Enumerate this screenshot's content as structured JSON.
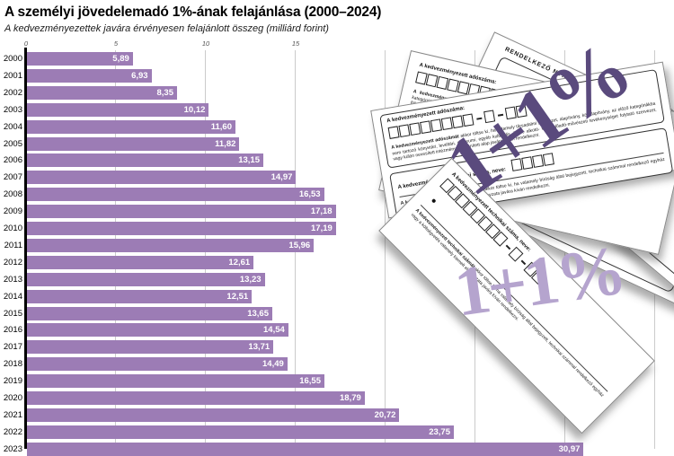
{
  "title": "A személyi jövedelemadó 1%-ának felajánlása (2000–2024)",
  "subtitle": "A kedvezményezettek javára érvényesen felajánlott összeg (milliárd forint)",
  "watermark": "1+1%",
  "colors": {
    "bar": "#9c7cb5",
    "watermark_dark": "#5a4a7d",
    "watermark_light": "#b5a4ce",
    "gridline": "#cbcbcb",
    "axis": "#000000"
  },
  "chart_data": {
    "type": "bar",
    "orientation": "horizontal",
    "title": "A személyi jövedelemadó 1%-ának felajánlása (2000–2024)",
    "subtitle": "A kedvezményezettek javára érvényesen felajánlott összeg (milliárd forint)",
    "xlabel": "",
    "ylabel": "",
    "unit": "milliárd forint",
    "categories": [
      2000,
      2001,
      2002,
      2003,
      2004,
      2005,
      2006,
      2007,
      2008,
      2009,
      2010,
      2011,
      2012,
      2013,
      2014,
      2015,
      2016,
      2017,
      2018,
      2019,
      2020,
      2021,
      2022,
      2023
    ],
    "values": [
      5.89,
      6.93,
      8.35,
      10.12,
      11.6,
      11.82,
      13.15,
      14.97,
      16.53,
      17.18,
      17.19,
      15.96,
      12.61,
      13.23,
      12.51,
      13.65,
      14.54,
      13.71,
      14.49,
      16.55,
      18.79,
      20.72,
      23.75,
      30.97
    ],
    "value_labels": [
      "5,89",
      "6,93",
      "8,35",
      "10,12",
      "11,60",
      "11,82",
      "13,15",
      "14,97",
      "16,53",
      "17,18",
      "17,19",
      "15,96",
      "12,61",
      "13,23",
      "12,51",
      "13,65",
      "14,54",
      "13,71",
      "14,49",
      "16,55",
      "18,79",
      "20,72",
      "23,75",
      "30,97"
    ],
    "x_ticks": [
      0,
      5,
      10,
      15
    ],
    "gridline_values": [
      5,
      10,
      15,
      20,
      25,
      30,
      35
    ],
    "xlim": [
      0,
      35
    ],
    "grid": true,
    "legend": false
  },
  "forms": {
    "back_title": "RENDELKEZŐ NYILATKOZAT A BEFIZETETT ADÓ EGY SZÁZALÉKÁRÓL",
    "field1_label": "A kedvezményezett adószáma:",
    "field1_bold": "A kedvezményezett adószámát",
    "field1_text": "akkor töltse ki, ha valamely társadalmi szervezet, alapítvány, közalapítvány, az előző kategóriákba nem tartozó könyvtári, levéltári, múzeumi, egyéb kulturális, illetve alkotó- vagy előadó-művészeti tevékenységet folytató szervezet, vagy külön nevesített intézmény, elkülönített alap javára kíván rendelkezni.",
    "field2_label": "A kedvezményezett technikai száma, neve:",
    "field2_bold": "A kedvezményezett technikai számát",
    "field2_text": "akkor töltse ki, ha valamely bíróság által bejegyzett, technikai számmal rendelkező egyház vagy a költségvetés valamely kiemelt előirányzata javára kíván rendelkezni.",
    "taxnum_box_groups": [
      8,
      1,
      2
    ],
    "technum_boxes": 4
  }
}
